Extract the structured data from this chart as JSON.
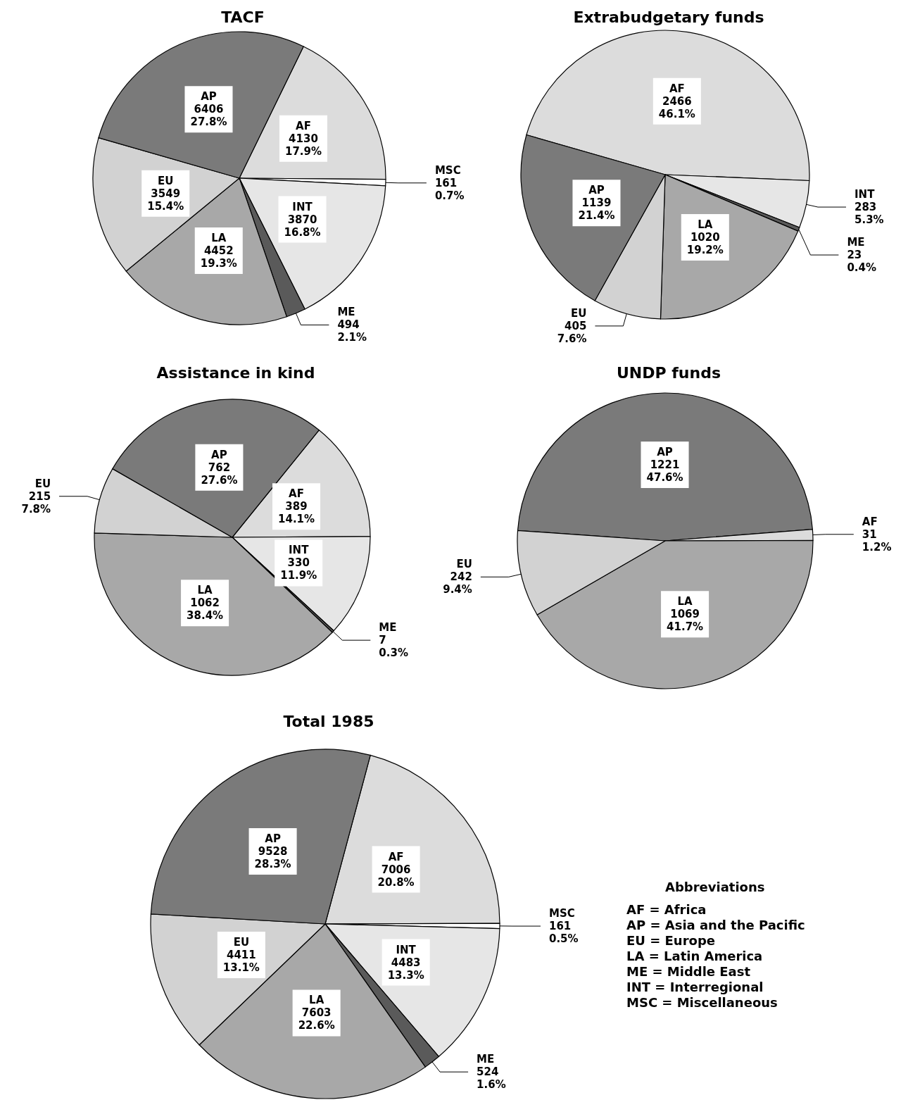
{
  "chart_data": [
    {
      "type": "pie",
      "title": "TACF",
      "categories": [
        "AF",
        "MSC",
        "INT",
        "ME",
        "LA",
        "EU",
        "AP"
      ],
      "values": [
        4130,
        161,
        3870,
        494,
        4452,
        3549,
        6406
      ],
      "value_labels": [
        "4130\n17.9%",
        "161\n0.7%",
        "3870\n16.8%",
        "494\n2.1%",
        "4452\n19.3%",
        "3549\n15.4%",
        "6406\n27.8%"
      ],
      "colors": [
        "#dcdcdc",
        "#ffffff",
        "#e6e6e6",
        "#5a5a5a",
        "#a8a8a8",
        "#d2d2d2",
        "#7a7a7a"
      ]
    },
    {
      "type": "pie",
      "title": "Extrabudgetary funds",
      "categories": [
        "AF",
        "INT",
        "ME",
        "LA",
        "EU",
        "AP"
      ],
      "values": [
        2466,
        283,
        23,
        1020,
        405,
        1139
      ],
      "value_labels": [
        "2466\n46.1%",
        "283\n5.3%",
        "23\n0.4%",
        "1020\n19.2%",
        "405\n7.6%",
        "1139\n21.4%"
      ],
      "colors": [
        "#dcdcdc",
        "#e6e6e6",
        "#5a5a5a",
        "#a8a8a8",
        "#d2d2d2",
        "#7a7a7a"
      ]
    },
    {
      "type": "pie",
      "title": "Assistance in kind",
      "categories": [
        "AF",
        "INT",
        "ME",
        "LA",
        "EU",
        "AP"
      ],
      "values": [
        389,
        330,
        7,
        1062,
        215,
        762
      ],
      "value_labels": [
        "389\n14.1%",
        "330\n11.9%",
        "7\n0.3%",
        "1062\n38.4%",
        "215\n7.8%",
        "762\n27.6%"
      ],
      "colors": [
        "#dcdcdc",
        "#e6e6e6",
        "#5a5a5a",
        "#a8a8a8",
        "#d2d2d2",
        "#7a7a7a"
      ]
    },
    {
      "type": "pie",
      "title": "UNDP funds",
      "categories": [
        "AP",
        "AF",
        "LA",
        "EU"
      ],
      "values": [
        1221,
        31,
        1069,
        242
      ],
      "value_labels": [
        "1221\n47.6%",
        "31\n1.2%",
        "1069\n41.7%",
        "242\n9.4%"
      ],
      "colors": [
        "#7a7a7a",
        "#dcdcdc",
        "#a8a8a8",
        "#d2d2d2"
      ]
    },
    {
      "type": "pie",
      "title": "Total 1985",
      "categories": [
        "AF",
        "MSC",
        "INT",
        "ME",
        "LA",
        "EU",
        "AP"
      ],
      "values": [
        7006,
        161,
        4483,
        524,
        7603,
        4411,
        9528
      ],
      "value_labels": [
        "7006\n20.8%",
        "161\n0.5%",
        "4483\n13.3%",
        "524\n1.6%",
        "7603\n22.6%",
        "4411\n13.1%",
        "9528\n28.3%"
      ],
      "colors": [
        "#dcdcdc",
        "#ffffff",
        "#e6e6e6",
        "#5a5a5a",
        "#a8a8a8",
        "#d2d2d2",
        "#7a7a7a"
      ],
      "annotations": [
        "Abbreviations",
        "AF = Africa",
        "AP = Asia and the Pacific",
        "EU = Europe",
        "LA = Latin America",
        "ME = Middle East",
        "INT = Interregional",
        "MSC = Miscellaneous"
      ]
    }
  ]
}
